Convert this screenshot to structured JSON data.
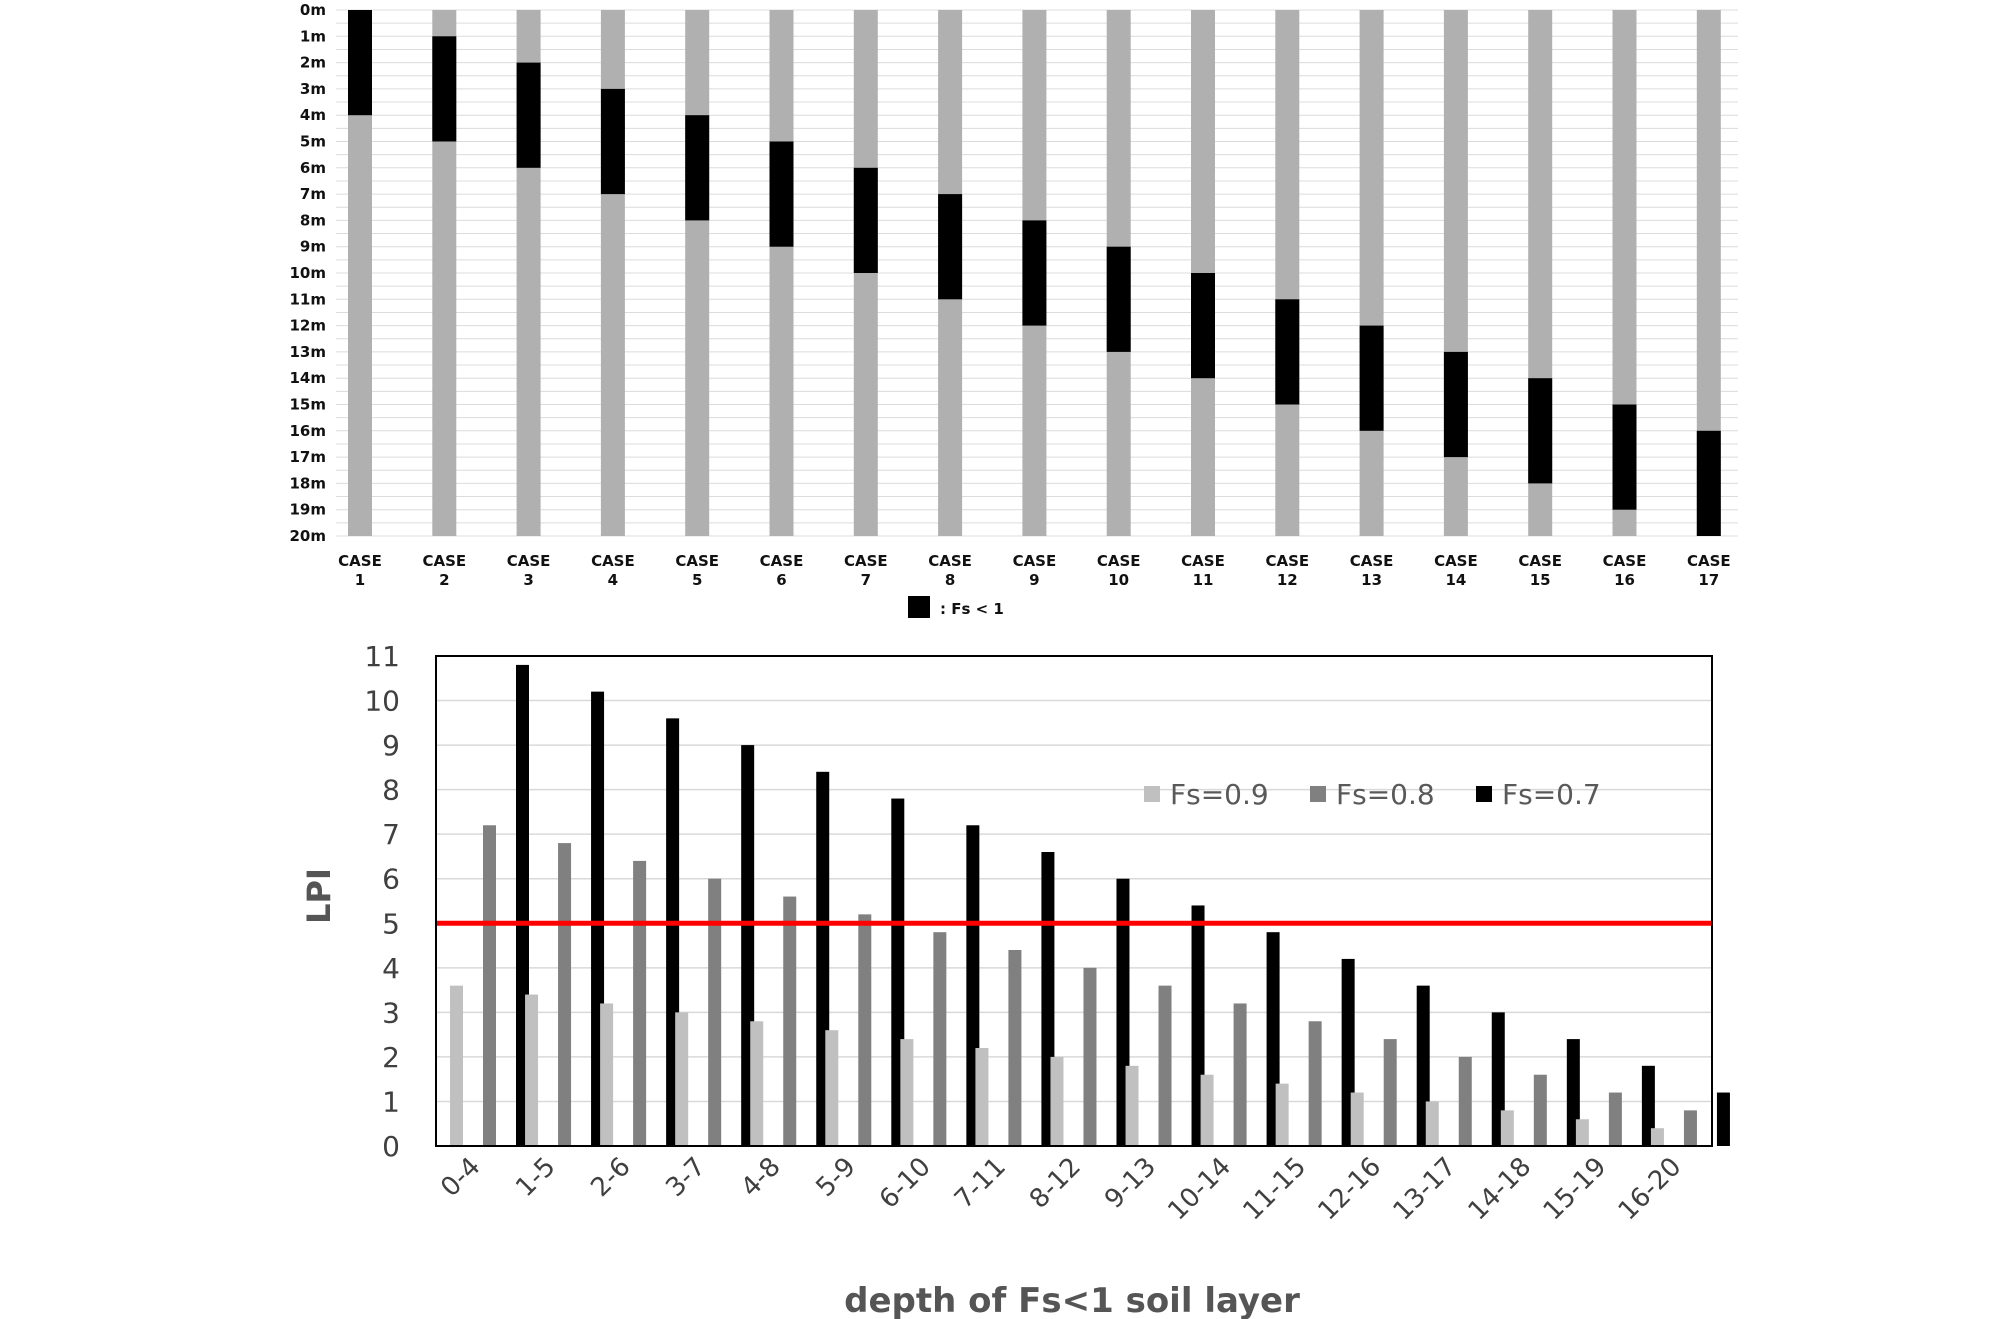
{
  "chart_data": [
    {
      "type": "bar",
      "subtype": "stacked-depth-profile",
      "y_unit": "m",
      "y_ticks": [
        "0m",
        "1m",
        "2m",
        "3m",
        "4m",
        "5m",
        "6m",
        "7m",
        "8m",
        "9m",
        "10m",
        "11m",
        "12m",
        "13m",
        "14m",
        "15m",
        "16m",
        "17m",
        "18m",
        "19m",
        "20m"
      ],
      "ylim": [
        0,
        20
      ],
      "y_inverted": true,
      "categories": [
        [
          "CASE",
          "1"
        ],
        [
          "CASE",
          "2"
        ],
        [
          "CASE",
          "3"
        ],
        [
          "CASE",
          "4"
        ],
        [
          "CASE",
          "5"
        ],
        [
          "CASE",
          "6"
        ],
        [
          "CASE",
          "7"
        ],
        [
          "CASE",
          "8"
        ],
        [
          "CASE",
          "9"
        ],
        [
          "CASE",
          "10"
        ],
        [
          "CASE",
          "11"
        ],
        [
          "CASE",
          "12"
        ],
        [
          "CASE",
          "13"
        ],
        [
          "CASE",
          "14"
        ],
        [
          "CASE",
          "15"
        ],
        [
          "CASE",
          "16"
        ],
        [
          "CASE",
          "17"
        ]
      ],
      "fs_lt_1_layer": [
        [
          0,
          4
        ],
        [
          1,
          5
        ],
        [
          2,
          6
        ],
        [
          3,
          7
        ],
        [
          4,
          8
        ],
        [
          5,
          9
        ],
        [
          6,
          10
        ],
        [
          7,
          11
        ],
        [
          8,
          12
        ],
        [
          9,
          13
        ],
        [
          10,
          14
        ],
        [
          11,
          15
        ],
        [
          12,
          16
        ],
        [
          13,
          17
        ],
        [
          14,
          18
        ],
        [
          15,
          19
        ],
        [
          16,
          20
        ]
      ],
      "total_depth": 20,
      "legend": ": Fs < 1",
      "colors": {
        "layer": "#000000",
        "soil": "#b0b0b0",
        "grid": "#dcdcdc"
      }
    },
    {
      "type": "bar",
      "categories": [
        "0-4",
        "1-5",
        "2-6",
        "3-7",
        "4-8",
        "5-9",
        "6-10",
        "7-11",
        "8-12",
        "9-13",
        "10-14",
        "11-15",
        "12-16",
        "13-17",
        "14-18",
        "15-19",
        "16-20"
      ],
      "series": [
        {
          "name": "Fs=0.9",
          "color": "#c0c0c0",
          "values": [
            3.6,
            3.4,
            3.2,
            3.0,
            2.8,
            2.6,
            2.4,
            2.2,
            2.0,
            1.8,
            1.6,
            1.4,
            1.2,
            1.0,
            0.8,
            0.6,
            0.4
          ]
        },
        {
          "name": "Fs=0.8",
          "color": "#808080",
          "values": [
            7.2,
            6.8,
            6.4,
            6.0,
            5.6,
            5.2,
            4.8,
            4.4,
            4.0,
            3.6,
            3.2,
            2.8,
            2.4,
            2.0,
            1.6,
            1.2,
            0.8
          ]
        },
        {
          "name": "Fs=0.7",
          "color": "#000000",
          "values": [
            10.8,
            10.2,
            9.6,
            9.0,
            8.4,
            7.8,
            7.2,
            6.6,
            6.0,
            5.4,
            4.8,
            4.2,
            3.6,
            3.0,
            2.4,
            1.8,
            1.2
          ]
        }
      ],
      "ylabel": "LPI",
      "xlabel": "depth of Fs<1 soil layer",
      "ylim": [
        0,
        11
      ],
      "y_ticks": [
        "0",
        "1",
        "2",
        "3",
        "4",
        "5",
        "6",
        "7",
        "8",
        "9",
        "10",
        "11"
      ],
      "reference_line": {
        "value": 5,
        "color": "#ff0000"
      },
      "legend_position": "top-right",
      "grid": true
    }
  ]
}
